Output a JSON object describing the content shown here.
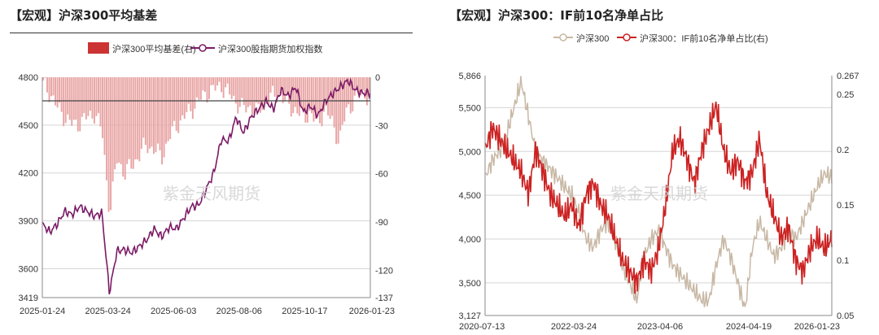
{
  "left": {
    "title": "【宏观】沪深300平均基差",
    "chart_data": {
      "type": "bar+line",
      "legend": [
        "沪深300平均基差(右)",
        "沪深300股指期货加权指数"
      ],
      "x_ticks": [
        "2025-01-24",
        "2025-03-24",
        "2025-06-03",
        "2025-08-06",
        "2025-10-17",
        "2026-01-23"
      ],
      "y_left_ticks": [
        "4800",
        "4500",
        "4200",
        "3900",
        "3600",
        "3419"
      ],
      "y_right_ticks": [
        "0",
        "-30",
        "-60",
        "-90",
        "-120",
        "-137"
      ],
      "y_left_range": [
        3419,
        4800
      ],
      "y_right_range": [
        -137,
        0
      ],
      "series": [
        {
          "name": "沪深300股指期货加权指数",
          "axis": "left",
          "values": [
            3880,
            3830,
            3880,
            3960,
            3940,
            3990,
            3960,
            3930,
            3950,
            3450,
            3710,
            3720,
            3700,
            3740,
            3780,
            3850,
            3800,
            3860,
            3850,
            3920,
            3990,
            4000,
            4100,
            4200,
            4410,
            4400,
            4550,
            4450,
            4550,
            4600,
            4650,
            4600,
            4720,
            4680,
            4740,
            4580,
            4620,
            4560,
            4650,
            4700,
            4740,
            4780,
            4720,
            4700,
            4700
          ]
        },
        {
          "name": "沪深300平均基差(右)",
          "axis": "right",
          "values": [
            -5,
            -10,
            -20,
            -25,
            -30,
            -28,
            -25,
            -22,
            -35,
            -85,
            -50,
            -60,
            -55,
            -48,
            -42,
            -45,
            -50,
            -38,
            -30,
            -25,
            -20,
            -15,
            -10,
            -8,
            -5,
            -10,
            -15,
            -20,
            -18,
            -22,
            -15,
            -12,
            -10,
            -18,
            -20,
            -25,
            -22,
            -30,
            -20,
            -28,
            -40,
            -20,
            -15,
            -10,
            -12
          ]
        }
      ],
      "watermark": "紫金天风期货"
    }
  },
  "right": {
    "title": "【宏观】沪深300：IF前10名净单占比",
    "chart_data": {
      "type": "line",
      "legend": [
        "沪深300",
        "沪深300：IF前10名净单占比(右)"
      ],
      "x_ticks": [
        "2020-07-13",
        "2022-03-24",
        "2023-04-06",
        "2024-04-19",
        "2026-01-23"
      ],
      "y_left_ticks": [
        "5,866",
        "5,500",
        "5,000",
        "4,500",
        "4,000",
        "3,500",
        "3,127"
      ],
      "y_right_ticks": [
        "0.267",
        "0.25",
        "0.2",
        "0.15",
        "0.1",
        "0.05"
      ],
      "y_left_range": [
        3127,
        5866
      ],
      "y_right_range": [
        0.05,
        0.267
      ],
      "series": [
        {
          "name": "沪深300",
          "axis": "left",
          "values": [
            4700,
            4900,
            5000,
            5200,
            5500,
            5800,
            5400,
            5000,
            4900,
            4800,
            4700,
            4600,
            4500,
            4300,
            4000,
            3900,
            4100,
            4200,
            4000,
            3700,
            3500,
            3300,
            3800,
            4000,
            4100,
            3900,
            3700,
            3600,
            3500,
            3400,
            3300,
            3300,
            3700,
            4000,
            3800,
            3500,
            3200,
            3900,
            4200,
            4000,
            3800,
            3900,
            4100,
            4000,
            4200,
            4400,
            4600,
            4750,
            4700
          ]
        },
        {
          "name": "沪深300：IF前10名净单占比(右)",
          "axis": "right",
          "values": [
            0.2,
            0.22,
            0.21,
            0.2,
            0.19,
            0.18,
            0.16,
            0.2,
            0.18,
            0.16,
            0.15,
            0.14,
            0.15,
            0.13,
            0.16,
            0.17,
            0.15,
            0.14,
            0.12,
            0.1,
            0.09,
            0.08,
            0.1,
            0.09,
            0.11,
            0.15,
            0.2,
            0.21,
            0.19,
            0.17,
            0.2,
            0.22,
            0.24,
            0.2,
            0.18,
            0.19,
            0.17,
            0.18,
            0.21,
            0.16,
            0.14,
            0.12,
            0.13,
            0.1,
            0.09,
            0.11,
            0.12,
            0.11,
            0.12
          ]
        }
      ],
      "watermark": "紫金天风期货"
    }
  }
}
